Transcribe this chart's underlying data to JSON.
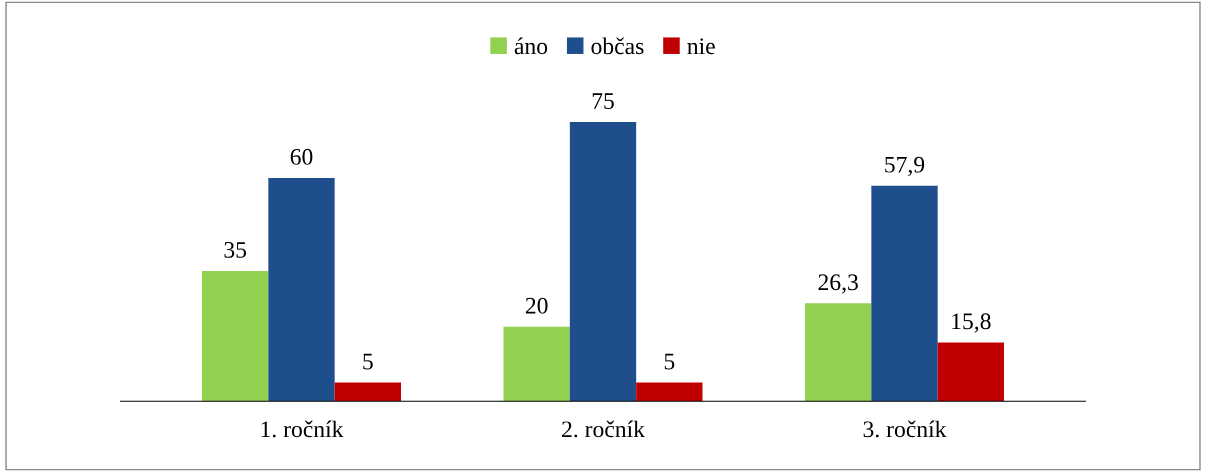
{
  "chart_data": {
    "type": "bar",
    "categories": [
      "1. ročník",
      "2. ročník",
      "3. ročník"
    ],
    "series": [
      {
        "name": "áno",
        "color": "#92d050",
        "values": [
          35,
          20,
          26.3
        ],
        "value_labels": [
          "35",
          "20",
          "26,3"
        ]
      },
      {
        "name": "občas",
        "color": "#1f4e8c",
        "values": [
          60,
          75,
          57.9
        ],
        "value_labels": [
          "60",
          "75",
          "57,9"
        ]
      },
      {
        "name": "nie",
        "color": "#c00000",
        "values": [
          5,
          5,
          15.8
        ],
        "value_labels": [
          "5",
          "5",
          "15,8"
        ]
      }
    ],
    "legend": "top"
  }
}
